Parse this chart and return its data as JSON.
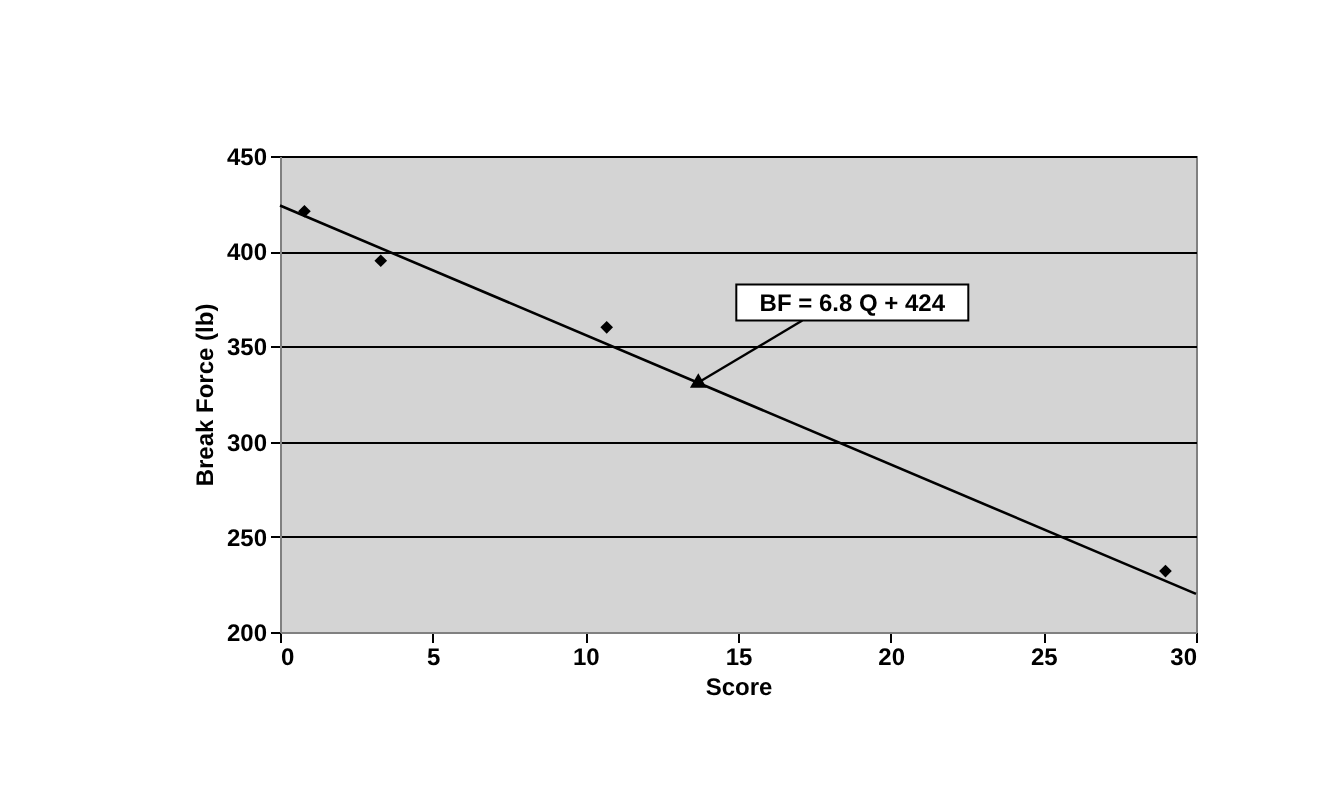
{
  "chart_data": {
    "type": "scatter",
    "xlabel": "Score",
    "ylabel": "Break Force (lb)",
    "xlim": [
      0,
      30
    ],
    "xticks": [
      0,
      5,
      10,
      15,
      20,
      25,
      30
    ],
    "ylim": [
      200,
      450
    ],
    "yticks": [
      200,
      250,
      300,
      350,
      400,
      450
    ],
    "grid": "y",
    "series": [
      {
        "type": "scatter",
        "color": "#000000",
        "marker": "diamond",
        "x": [
          0.8,
          3.3,
          10.7,
          29
        ],
        "values": [
          421,
          395,
          360,
          232
        ]
      },
      {
        "type": "line",
        "color": "#000000",
        "x": [
          0,
          30
        ],
        "values": [
          424,
          220
        ]
      }
    ],
    "annotations": [
      {
        "text": "BF = 6.8 Q + 424",
        "x": 13.7,
        "y": 331
      }
    ]
  }
}
